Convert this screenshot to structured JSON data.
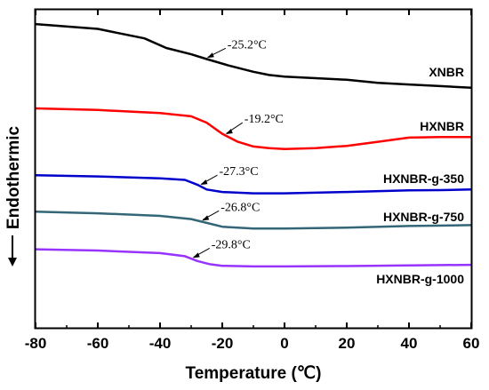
{
  "chart_data": {
    "type": "line",
    "title": "",
    "xlabel": "Temperature (℃)",
    "ylabel": "Endothermic",
    "xlim": [
      -80,
      60
    ],
    "xticks": [
      -80,
      -60,
      -40,
      -20,
      0,
      20,
      40,
      60
    ],
    "yticks_visible": false,
    "grid": false,
    "series": [
      {
        "name": "XNBR",
        "color": "#000000",
        "tg_label": "-25.2°C",
        "tg_x": -25.2,
        "points": [
          [
            -80,
            0.955
          ],
          [
            -60,
            0.94
          ],
          [
            -45,
            0.91
          ],
          [
            -38,
            0.88
          ],
          [
            -30,
            0.86
          ],
          [
            -25,
            0.845
          ],
          [
            -18,
            0.825
          ],
          [
            -10,
            0.805
          ],
          [
            -5,
            0.795
          ],
          [
            0,
            0.79
          ],
          [
            10,
            0.785
          ],
          [
            20,
            0.78
          ],
          [
            30,
            0.77
          ],
          [
            40,
            0.765
          ],
          [
            50,
            0.76
          ],
          [
            60,
            0.755
          ]
        ]
      },
      {
        "name": "HXNBR",
        "color": "#ff0000",
        "tg_label": "-19.2°C",
        "tg_x": -19.2,
        "points": [
          [
            -80,
            0.69
          ],
          [
            -60,
            0.685
          ],
          [
            -40,
            0.675
          ],
          [
            -30,
            0.665
          ],
          [
            -25,
            0.645
          ],
          [
            -20,
            0.61
          ],
          [
            -15,
            0.585
          ],
          [
            -10,
            0.57
          ],
          [
            -5,
            0.565
          ],
          [
            0,
            0.562
          ],
          [
            10,
            0.565
          ],
          [
            20,
            0.572
          ],
          [
            30,
            0.585
          ],
          [
            40,
            0.598
          ],
          [
            50,
            0.6
          ],
          [
            60,
            0.6
          ]
        ]
      },
      {
        "name": "HXNBR-g-350",
        "color": "#0000cc",
        "tg_label": "-27.3°C",
        "tg_x": -27.3,
        "points": [
          [
            -80,
            0.48
          ],
          [
            -60,
            0.476
          ],
          [
            -40,
            0.47
          ],
          [
            -32,
            0.465
          ],
          [
            -28,
            0.45
          ],
          [
            -25,
            0.435
          ],
          [
            -20,
            0.427
          ],
          [
            -10,
            0.423
          ],
          [
            0,
            0.423
          ],
          [
            20,
            0.427
          ],
          [
            40,
            0.432
          ],
          [
            50,
            0.433
          ],
          [
            60,
            0.435
          ]
        ]
      },
      {
        "name": "HXNBR-g-750",
        "color": "#336677",
        "tg_label": "-26.8°C",
        "tg_x": -26.8,
        "points": [
          [
            -80,
            0.365
          ],
          [
            -60,
            0.36
          ],
          [
            -40,
            0.352
          ],
          [
            -30,
            0.342
          ],
          [
            -25,
            0.33
          ],
          [
            -20,
            0.318
          ],
          [
            -10,
            0.312
          ],
          [
            0,
            0.312
          ],
          [
            20,
            0.315
          ],
          [
            40,
            0.32
          ],
          [
            60,
            0.323
          ]
        ]
      },
      {
        "name": "HXNBR-g-1000",
        "color": "#9933ff",
        "tg_label": "-29.8°C",
        "tg_x": -29.8,
        "points": [
          [
            -80,
            0.247
          ],
          [
            -60,
            0.243
          ],
          [
            -40,
            0.235
          ],
          [
            -32,
            0.225
          ],
          [
            -28,
            0.21
          ],
          [
            -24,
            0.2
          ],
          [
            -20,
            0.195
          ],
          [
            -10,
            0.193
          ],
          [
            0,
            0.193
          ],
          [
            20,
            0.194
          ],
          [
            40,
            0.196
          ],
          [
            60,
            0.198
          ]
        ]
      }
    ]
  }
}
